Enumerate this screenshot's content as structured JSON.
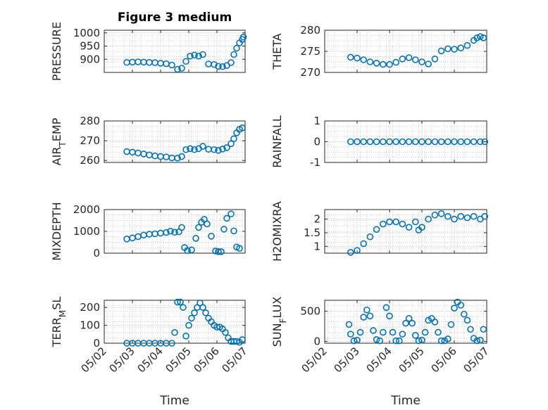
{
  "figure": {
    "title": "Figure 3 medium",
    "xlabel": "Time",
    "xticks": [
      "05/02",
      "05/03",
      "05/04",
      "05/05",
      "05/06",
      "05/07"
    ],
    "marker_color": "#0072bd"
  },
  "chart_data": [
    {
      "type": "scatter",
      "ylabel": "PRESSURE",
      "ylim": [
        850,
        1010
      ],
      "yticks": [
        "900",
        "950",
        "1000"
      ],
      "xlim": [
        0,
        5
      ],
      "grid": true,
      "x": [
        0.8,
        1.0,
        1.2,
        1.4,
        1.6,
        1.8,
        2.0,
        2.2,
        2.4,
        2.6,
        2.75,
        2.9,
        3.05,
        3.2,
        3.35,
        3.5,
        3.7,
        3.9,
        4.05,
        4.2,
        4.35,
        4.5,
        4.6,
        4.7,
        4.8,
        4.9,
        4.94
      ],
      "y": [
        888,
        889,
        890,
        889,
        888,
        887,
        885,
        883,
        878,
        862,
        866,
        892,
        912,
        916,
        912,
        918,
        882,
        880,
        873,
        872,
        876,
        887,
        918,
        942,
        962,
        975,
        984
      ]
    },
    {
      "type": "scatter",
      "ylabel": "THETA",
      "ylim": [
        270,
        280
      ],
      "yticks": [
        "270",
        "275",
        "280"
      ],
      "xlim": [
        0,
        5
      ],
      "grid": true,
      "x": [
        0.8,
        1.0,
        1.2,
        1.4,
        1.6,
        1.8,
        2.0,
        2.2,
        2.4,
        2.6,
        2.8,
        3.0,
        3.2,
        3.4,
        3.6,
        3.8,
        4.0,
        4.2,
        4.4,
        4.6,
        4.7,
        4.8,
        4.9
      ],
      "y": [
        273.6,
        273.4,
        273.0,
        272.5,
        272.2,
        271.9,
        271.9,
        272.4,
        273.2,
        273.5,
        273.0,
        272.5,
        272.0,
        273.2,
        275.1,
        275.6,
        275.5,
        275.8,
        276.4,
        277.6,
        278.2,
        278.5,
        278.2
      ]
    },
    {
      "type": "scatter",
      "ylabel": "AIR_TEMP",
      "ylim": [
        259,
        280
      ],
      "yticks": [
        "260",
        "270",
        "280"
      ],
      "xlim": [
        0,
        5
      ],
      "grid": true,
      "x": [
        0.8,
        1.0,
        1.2,
        1.4,
        1.6,
        1.8,
        2.0,
        2.2,
        2.4,
        2.6,
        2.75,
        2.9,
        3.05,
        3.2,
        3.35,
        3.5,
        3.7,
        3.9,
        4.05,
        4.2,
        4.35,
        4.5,
        4.6,
        4.7,
        4.8,
        4.9
      ],
      "y": [
        264.5,
        264.2,
        263.8,
        263.3,
        262.8,
        262.3,
        262.0,
        261.8,
        261.3,
        261.2,
        262.0,
        265.5,
        266.0,
        265.5,
        266.0,
        267.2,
        265.7,
        265.5,
        265.1,
        265.8,
        266.5,
        268.5,
        271.0,
        274.0,
        275.8,
        276.5
      ]
    },
    {
      "type": "scatter",
      "ylabel": "RAINFALL",
      "ylim": [
        -1,
        1
      ],
      "yticks": [
        "-1",
        "0",
        "1"
      ],
      "xlim": [
        0,
        5
      ],
      "grid": true,
      "x": [
        0.8,
        1.0,
        1.2,
        1.4,
        1.6,
        1.8,
        2.0,
        2.2,
        2.4,
        2.6,
        2.8,
        3.0,
        3.2,
        3.4,
        3.6,
        3.8,
        4.0,
        4.2,
        4.4,
        4.6,
        4.8,
        4.94
      ],
      "y": [
        0,
        0,
        0,
        0,
        0,
        0,
        0,
        0,
        0,
        0,
        0,
        0,
        0,
        0,
        0,
        0,
        0,
        0,
        0,
        0,
        0,
        0
      ]
    },
    {
      "type": "scatter",
      "ylabel": "MIXDEPTH",
      "ylim": [
        0,
        2000
      ],
      "yticks": [
        "0",
        "1000",
        "2000"
      ],
      "xlim": [
        0,
        5
      ],
      "grid": true,
      "x": [
        0.8,
        1.0,
        1.2,
        1.4,
        1.6,
        1.8,
        2.0,
        2.2,
        2.35,
        2.5,
        2.65,
        2.75,
        2.85,
        2.95,
        3.1,
        3.25,
        3.35,
        3.45,
        3.55,
        3.65,
        3.8,
        3.95,
        4.05,
        4.15,
        4.25,
        4.35,
        4.5,
        4.6,
        4.7,
        4.8
      ],
      "y": [
        650,
        700,
        760,
        830,
        870,
        890,
        920,
        950,
        1010,
        960,
        980,
        1180,
        260,
        120,
        150,
        680,
        1180,
        1420,
        1550,
        1340,
        780,
        100,
        70,
        70,
        1100,
        1600,
        1800,
        1020,
        280,
        220
      ]
    },
    {
      "type": "scatter",
      "ylabel": "H2OMIXRA",
      "ylim": [
        0.75,
        2.35
      ],
      "yticks": [
        "1",
        "1.5",
        "2"
      ],
      "xlim": [
        0,
        5
      ],
      "grid": true,
      "x": [
        0.8,
        1.0,
        1.2,
        1.4,
        1.6,
        1.8,
        2.0,
        2.2,
        2.4,
        2.6,
        2.8,
        2.9,
        3.0,
        3.2,
        3.4,
        3.6,
        3.8,
        4.0,
        4.2,
        4.4,
        4.6,
        4.8,
        4.94
      ],
      "y": [
        0.78,
        0.85,
        1.1,
        1.35,
        1.62,
        1.82,
        1.9,
        1.9,
        1.82,
        1.7,
        1.9,
        1.6,
        1.7,
        2.0,
        2.15,
        2.2,
        2.1,
        2.0,
        2.1,
        2.05,
        2.1,
        2.0,
        2.1
      ]
    },
    {
      "type": "scatter",
      "ylabel": "TERR_MSL",
      "ylim": [
        0,
        240
      ],
      "yticks": [
        "0",
        "100",
        "200"
      ],
      "xlim": [
        0,
        5
      ],
      "grid": true,
      "x": [
        0.8,
        1.0,
        1.2,
        1.4,
        1.6,
        1.8,
        2.0,
        2.2,
        2.4,
        2.5,
        2.6,
        2.7,
        2.8,
        2.9,
        3.0,
        3.1,
        3.2,
        3.3,
        3.4,
        3.5,
        3.6,
        3.7,
        3.8,
        3.9,
        4.0,
        4.1,
        4.2,
        4.3,
        4.4,
        4.5,
        4.6,
        4.7,
        4.8,
        4.9
      ],
      "y": [
        0,
        0,
        0,
        0,
        0,
        0,
        0,
        0,
        0,
        60,
        230,
        230,
        200,
        40,
        100,
        140,
        170,
        200,
        225,
        200,
        170,
        140,
        120,
        100,
        90,
        90,
        80,
        60,
        30,
        10,
        10,
        10,
        5,
        20
      ]
    },
    {
      "type": "scatter",
      "ylabel": "SUN_FLUX",
      "ylim": [
        -30,
        680
      ],
      "yticks": [
        "0",
        "500"
      ],
      "xlim": [
        0,
        5
      ],
      "grid": true,
      "x": [
        0.75,
        0.8,
        0.9,
        1.0,
        1.1,
        1.2,
        1.3,
        1.4,
        1.5,
        1.6,
        1.7,
        1.8,
        1.9,
        2.0,
        2.1,
        2.2,
        2.3,
        2.4,
        2.5,
        2.6,
        2.7,
        2.8,
        2.9,
        3.0,
        3.1,
        3.2,
        3.3,
        3.4,
        3.5,
        3.6,
        3.7,
        3.8,
        3.9,
        4.0,
        4.1,
        4.2,
        4.3,
        4.4,
        4.5,
        4.6,
        4.7,
        4.8,
        4.9
      ],
      "y": [
        280,
        120,
        10,
        20,
        150,
        400,
        520,
        420,
        180,
        30,
        10,
        150,
        560,
        420,
        150,
        10,
        10,
        120,
        300,
        380,
        300,
        100,
        10,
        20,
        150,
        350,
        380,
        320,
        150,
        10,
        10,
        40,
        280,
        550,
        650,
        600,
        450,
        350,
        200,
        50,
        10,
        20,
        200
      ]
    }
  ]
}
